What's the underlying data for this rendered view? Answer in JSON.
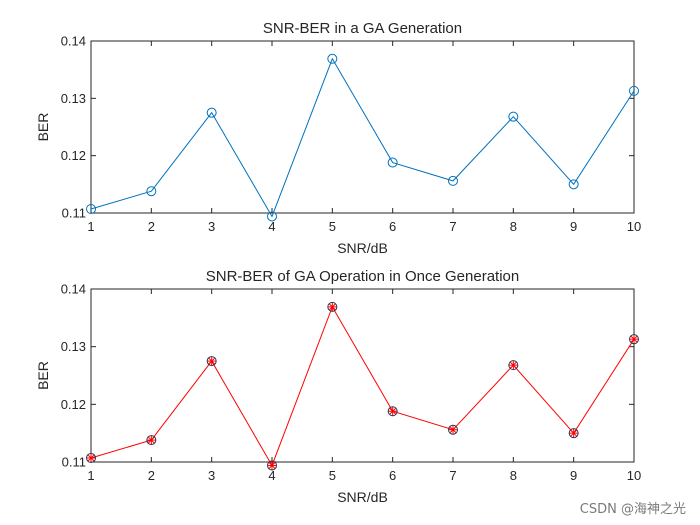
{
  "watermark": "CSDN @海神之光",
  "chart_data": [
    {
      "type": "line",
      "title": "SNR-BER in a GA Generation",
      "xlabel": "SNR/dB",
      "ylabel": "BER",
      "xlim": [
        1,
        10
      ],
      "ylim": [
        0.11,
        0.14
      ],
      "xticks": [
        1,
        2,
        3,
        4,
        5,
        6,
        7,
        8,
        9,
        10
      ],
      "yticks": [
        0.11,
        0.12,
        0.13,
        0.14
      ],
      "ytick_labels": [
        "0.11",
        "0.12",
        "0.13",
        "0.14"
      ],
      "series": [
        {
          "name": "BER",
          "color": "#0072BD",
          "marker": "circle",
          "x": [
            1,
            2,
            3,
            4,
            5,
            6,
            7,
            8,
            9,
            10
          ],
          "y": [
            0.1107,
            0.1138,
            0.1275,
            0.1094,
            0.1369,
            0.1188,
            0.1156,
            0.1268,
            0.115,
            0.1313
          ]
        }
      ]
    },
    {
      "type": "line",
      "title": "SNR-BER of GA Operation in Once Generation",
      "xlabel": "SNR/dB",
      "ylabel": "BER",
      "xlim": [
        1,
        10
      ],
      "ylim": [
        0.11,
        0.14
      ],
      "xticks": [
        1,
        2,
        3,
        4,
        5,
        6,
        7,
        8,
        9,
        10
      ],
      "yticks": [
        0.11,
        0.12,
        0.13,
        0.14
      ],
      "ytick_labels": [
        "0.11",
        "0.12",
        "0.13",
        "0.14"
      ],
      "series": [
        {
          "name": "BER",
          "color": "#ff0000",
          "marker": "circle-star",
          "marker_edge_color": "#1f3a5f",
          "x": [
            1,
            2,
            3,
            4,
            5,
            6,
            7,
            8,
            9,
            10
          ],
          "y": [
            0.1107,
            0.1138,
            0.1275,
            0.1094,
            0.1369,
            0.1188,
            0.1156,
            0.1268,
            0.115,
            0.1313
          ]
        }
      ]
    }
  ]
}
